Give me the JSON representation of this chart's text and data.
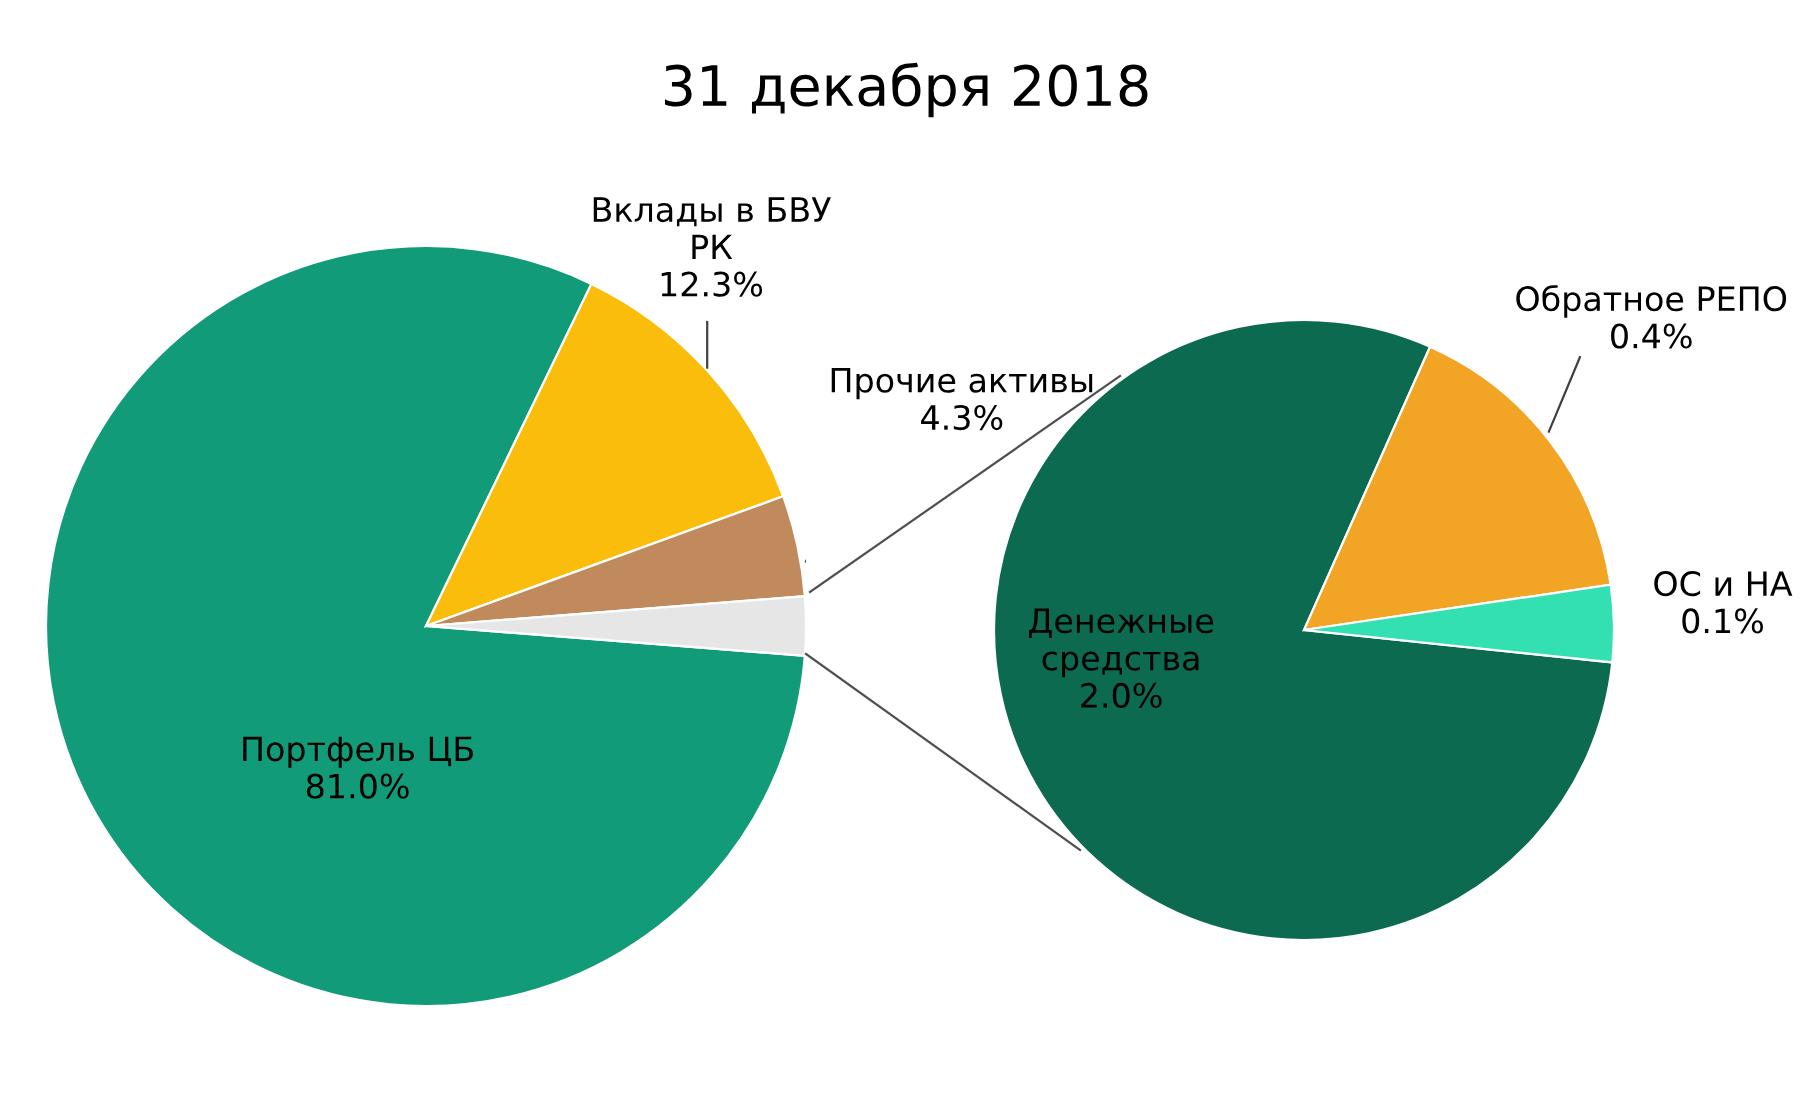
{
  "chart_data": [
    {
      "type": "pie",
      "title": "31 декабря 2018",
      "categories": [
        "Портфель ЦБ",
        "Вклады в БВУ\nРК",
        "Прочие активы",
        null
      ],
      "values": [
        81.0,
        12.3,
        4.3,
        2.5
      ],
      "colors": [
        "#129b78",
        "#fbbd0c",
        "#c08a5c",
        "#e6e6e6"
      ],
      "value_labels": [
        "81.0%",
        "12.3%",
        "4.3%",
        null
      ]
    },
    {
      "type": "pie",
      "categories": [
        "Денежные\nсредства",
        "Обратное РЕПО",
        "ОС и НА"
      ],
      "values": [
        2.0,
        0.4,
        0.1
      ],
      "colors": [
        "#0b6a50",
        "#f2a424",
        "#33e0b2"
      ],
      "value_labels": [
        "2.0%",
        "0.4%",
        "0.1%"
      ]
    }
  ]
}
